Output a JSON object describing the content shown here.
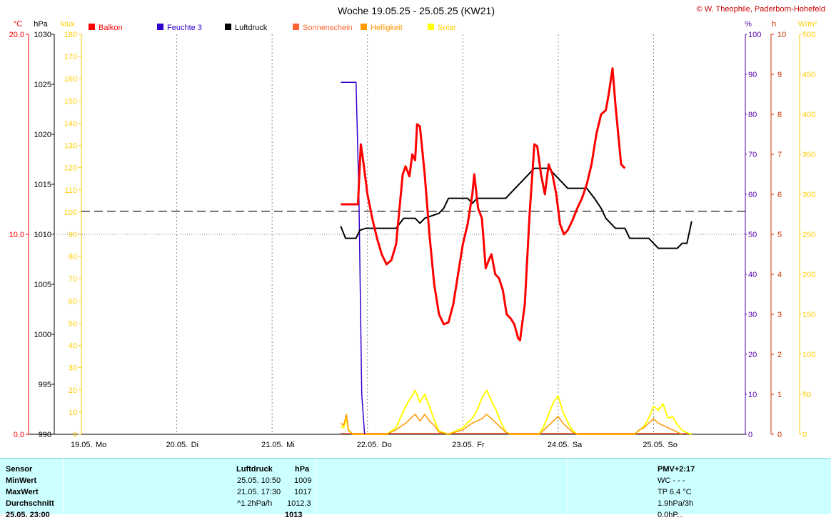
{
  "title": "Woche 19.05.25 - 25.05.25 (KW21)",
  "copyright": "© W. Theophile, Paderborn-Hohefeld",
  "colors": {
    "balkon": "#ff0000",
    "feuchte": "#3300cc",
    "luftdruck": "#000000",
    "sonnenschein": "#ff6633",
    "helligkeit": "#ff9900",
    "solar": "#ffff00",
    "celsius_axis": "#ff0000",
    "klux_axis": "#ffcc00",
    "percent_axis": "#5500aa",
    "hours_axis": "#cc3300",
    "solar_axis": "#ffcc00",
    "info_bg": "#ccffff"
  },
  "chart_data": {
    "type": "line",
    "title": "Woche 19.05.25 - 25.05.25 (KW21)",
    "legend": [
      "Balkon",
      "Feuchte 3",
      "Luftdruck",
      "Sonnenschein",
      "Helligkeit",
      "Solar"
    ],
    "x_days": [
      {
        "date": "19.05.",
        "day": "Mo"
      },
      {
        "date": "20.05.",
        "day": "Di"
      },
      {
        "date": "21.05.",
        "day": "Mi"
      },
      {
        "date": "22.05.",
        "day": "Do"
      },
      {
        "date": "23.05.",
        "day": "Fr"
      },
      {
        "date": "24.05.",
        "day": "Sa"
      },
      {
        "date": "25.05.",
        "day": "So"
      }
    ],
    "axes": {
      "celsius": {
        "unit": "°C",
        "range": [
          0,
          20
        ],
        "ticks": [
          "20.0",
          "10.0",
          "0.0"
        ]
      },
      "hpa": {
        "unit": "hPa",
        "range": [
          990,
          1030
        ],
        "ticks": [
          "1030",
          "1025",
          "1020",
          "1015",
          "1010",
          "1005",
          "1000",
          "995",
          "990"
        ]
      },
      "klux": {
        "unit": "klux",
        "range": [
          0,
          180
        ],
        "ticks": [
          "180",
          "170",
          "160",
          "150",
          "140",
          "130",
          "120",
          "110",
          "100",
          "90",
          "80",
          "70",
          "60",
          "50",
          "40",
          "30",
          "20",
          "10",
          "0"
        ]
      },
      "percent": {
        "unit": "%",
        "range": [
          0,
          100
        ],
        "ticks": [
          "100",
          "90",
          "80",
          "70",
          "60",
          "50",
          "40",
          "30",
          "20",
          "10",
          "0"
        ]
      },
      "hours": {
        "unit": "h",
        "range": [
          0,
          10
        ],
        "ticks": [
          "10",
          "9",
          "8",
          "7",
          "6",
          "5",
          "4",
          "3",
          "2",
          "1",
          "0"
        ]
      },
      "solar": {
        "unit": "W/m²",
        "range": [
          0,
          500
        ],
        "ticks": [
          "500",
          "450",
          "400",
          "350",
          "300",
          "250",
          "200",
          "150",
          "100",
          "50",
          "0"
        ]
      }
    },
    "pressure_mean_hpa": 1012.3,
    "series": [
      {
        "name": "Balkon",
        "unit": "°C",
        "points": [
          [
            2.72,
            11.5
          ],
          [
            2.9,
            11.5
          ],
          [
            2.93,
            14.5
          ],
          [
            2.96,
            13.5
          ],
          [
            3.0,
            12.0
          ],
          [
            3.05,
            10.8
          ],
          [
            3.1,
            9.8
          ],
          [
            3.15,
            9.0
          ],
          [
            3.2,
            8.5
          ],
          [
            3.25,
            8.7
          ],
          [
            3.3,
            9.5
          ],
          [
            3.33,
            11.0
          ],
          [
            3.37,
            13.0
          ],
          [
            3.4,
            13.4
          ],
          [
            3.44,
            12.9
          ],
          [
            3.47,
            14.0
          ],
          [
            3.5,
            13.7
          ],
          [
            3.52,
            15.5
          ],
          [
            3.55,
            15.4
          ],
          [
            3.6,
            13.0
          ],
          [
            3.65,
            10.0
          ],
          [
            3.7,
            7.5
          ],
          [
            3.75,
            6.0
          ],
          [
            3.8,
            5.5
          ],
          [
            3.85,
            5.6
          ],
          [
            3.9,
            6.5
          ],
          [
            3.95,
            8.0
          ],
          [
            4.0,
            9.5
          ],
          [
            4.05,
            10.5
          ],
          [
            4.1,
            12.0
          ],
          [
            4.12,
            13.0
          ],
          [
            4.16,
            11.3
          ],
          [
            4.2,
            10.8
          ],
          [
            4.24,
            8.3
          ],
          [
            4.28,
            8.8
          ],
          [
            4.3,
            9.0
          ],
          [
            4.34,
            8.0
          ],
          [
            4.38,
            7.8
          ],
          [
            4.42,
            7.2
          ],
          [
            4.46,
            6.0
          ],
          [
            4.5,
            5.8
          ],
          [
            4.54,
            5.5
          ],
          [
            4.58,
            4.8
          ],
          [
            4.6,
            4.7
          ],
          [
            4.65,
            6.5
          ],
          [
            4.7,
            11.0
          ],
          [
            4.75,
            14.5
          ],
          [
            4.78,
            14.4
          ],
          [
            4.82,
            13.0
          ],
          [
            4.86,
            12.0
          ],
          [
            4.9,
            13.5
          ],
          [
            4.94,
            13.0
          ],
          [
            4.98,
            12.0
          ],
          [
            5.02,
            10.5
          ],
          [
            5.06,
            10.0
          ],
          [
            5.1,
            10.2
          ],
          [
            5.15,
            10.7
          ],
          [
            5.2,
            11.3
          ],
          [
            5.25,
            11.8
          ],
          [
            5.3,
            12.5
          ],
          [
            5.35,
            13.5
          ],
          [
            5.4,
            15.0
          ],
          [
            5.45,
            16.0
          ],
          [
            5.5,
            16.2
          ],
          [
            5.53,
            17.0
          ],
          [
            5.57,
            18.3
          ],
          [
            5.6,
            16.5
          ],
          [
            5.63,
            15.0
          ],
          [
            5.66,
            13.5
          ],
          [
            5.7,
            13.3
          ]
        ]
      },
      {
        "name": "Feuchte 3",
        "unit": "%",
        "points": [
          [
            2.72,
            88
          ],
          [
            2.88,
            88
          ],
          [
            2.91,
            60
          ],
          [
            2.94,
            10
          ],
          [
            2.97,
            0
          ]
        ]
      },
      {
        "name": "Luftdruck",
        "unit": "hPa",
        "points": [
          [
            2.72,
            1010.8
          ],
          [
            2.77,
            1009.6
          ],
          [
            2.88,
            1009.6
          ],
          [
            2.92,
            1010.4
          ],
          [
            2.98,
            1010.6
          ],
          [
            3.3,
            1010.6
          ],
          [
            3.38,
            1011.6
          ],
          [
            3.5,
            1011.6
          ],
          [
            3.55,
            1011.1
          ],
          [
            3.6,
            1011.6
          ],
          [
            3.75,
            1012.1
          ],
          [
            3.8,
            1012.6
          ],
          [
            3.85,
            1013.6
          ],
          [
            4.05,
            1013.6
          ],
          [
            4.1,
            1013.1
          ],
          [
            4.15,
            1013.6
          ],
          [
            4.45,
            1013.6
          ],
          [
            4.55,
            1014.6
          ],
          [
            4.65,
            1015.6
          ],
          [
            4.75,
            1016.6
          ],
          [
            4.9,
            1016.6
          ],
          [
            5.0,
            1015.6
          ],
          [
            5.1,
            1014.6
          ],
          [
            5.3,
            1014.6
          ],
          [
            5.38,
            1013.6
          ],
          [
            5.45,
            1012.6
          ],
          [
            5.5,
            1011.6
          ],
          [
            5.55,
            1011.1
          ],
          [
            5.6,
            1010.6
          ],
          [
            5.7,
            1010.6
          ],
          [
            5.75,
            1009.6
          ],
          [
            5.95,
            1009.6
          ],
          [
            6.05,
            1008.6
          ],
          [
            6.25,
            1008.6
          ],
          [
            6.3,
            1009.1
          ],
          [
            6.35,
            1009.1
          ],
          [
            6.4,
            1011.3
          ]
        ]
      },
      {
        "name": "Sonnenschein",
        "unit": "h",
        "points": [
          [
            2.72,
            0.02
          ],
          [
            6.4,
            0.02
          ]
        ]
      },
      {
        "name": "Helligkeit",
        "unit": "klux",
        "points": [
          [
            2.72,
            5
          ],
          [
            2.75,
            4
          ],
          [
            2.78,
            9
          ],
          [
            2.8,
            2
          ],
          [
            2.85,
            0
          ],
          [
            3.2,
            0
          ],
          [
            3.3,
            2
          ],
          [
            3.4,
            5
          ],
          [
            3.45,
            7
          ],
          [
            3.5,
            9
          ],
          [
            3.55,
            6
          ],
          [
            3.6,
            9
          ],
          [
            3.65,
            6
          ],
          [
            3.7,
            4
          ],
          [
            3.75,
            1
          ],
          [
            3.85,
            0
          ],
          [
            4.0,
            2
          ],
          [
            4.1,
            5
          ],
          [
            4.15,
            6
          ],
          [
            4.2,
            7
          ],
          [
            4.25,
            9
          ],
          [
            4.3,
            7
          ],
          [
            4.35,
            5
          ],
          [
            4.4,
            3
          ],
          [
            4.45,
            1
          ],
          [
            4.5,
            0
          ],
          [
            4.8,
            0
          ],
          [
            4.85,
            2
          ],
          [
            4.9,
            4
          ],
          [
            4.95,
            6
          ],
          [
            5.0,
            8
          ],
          [
            5.05,
            5
          ],
          [
            5.1,
            3
          ],
          [
            5.15,
            1
          ],
          [
            5.2,
            0
          ],
          [
            5.8,
            0
          ],
          [
            5.85,
            2
          ],
          [
            5.9,
            3
          ],
          [
            5.95,
            5
          ],
          [
            6.0,
            7
          ],
          [
            6.05,
            5
          ],
          [
            6.1,
            4
          ],
          [
            6.15,
            3
          ],
          [
            6.2,
            2
          ],
          [
            6.25,
            1
          ],
          [
            6.3,
            0
          ]
        ]
      },
      {
        "name": "Solar",
        "unit": "W/m²",
        "points": [
          [
            2.72,
            10
          ],
          [
            2.75,
            8
          ],
          [
            2.78,
            20
          ],
          [
            2.8,
            5
          ],
          [
            2.85,
            0
          ],
          [
            3.2,
            0
          ],
          [
            3.3,
            8
          ],
          [
            3.4,
            35
          ],
          [
            3.45,
            45
          ],
          [
            3.5,
            55
          ],
          [
            3.55,
            40
          ],
          [
            3.6,
            50
          ],
          [
            3.65,
            35
          ],
          [
            3.7,
            18
          ],
          [
            3.75,
            4
          ],
          [
            3.85,
            0
          ],
          [
            4.0,
            8
          ],
          [
            4.1,
            20
          ],
          [
            4.15,
            30
          ],
          [
            4.2,
            45
          ],
          [
            4.25,
            55
          ],
          [
            4.3,
            42
          ],
          [
            4.35,
            30
          ],
          [
            4.4,
            15
          ],
          [
            4.45,
            3
          ],
          [
            4.5,
            0
          ],
          [
            4.8,
            0
          ],
          [
            4.85,
            10
          ],
          [
            4.9,
            25
          ],
          [
            4.95,
            40
          ],
          [
            5.0,
            48
          ],
          [
            5.05,
            28
          ],
          [
            5.1,
            15
          ],
          [
            5.15,
            5
          ],
          [
            5.2,
            0
          ],
          [
            5.8,
            0
          ],
          [
            5.85,
            5
          ],
          [
            5.9,
            10
          ],
          [
            5.95,
            20
          ],
          [
            6.0,
            35
          ],
          [
            6.05,
            30
          ],
          [
            6.1,
            38
          ],
          [
            6.15,
            20
          ],
          [
            6.2,
            22
          ],
          [
            6.25,
            12
          ],
          [
            6.3,
            5
          ],
          [
            6.35,
            2
          ],
          [
            6.4,
            0
          ]
        ]
      }
    ]
  },
  "info": {
    "sensor_label": "Sensor",
    "min_label": "MinWert",
    "max_label": "MaxWert",
    "avg_label": "Durchschnitt",
    "partial_label": "25.05. 23:00",
    "col_luftdruck": "Luftdruck",
    "col_unit": "hPa",
    "min_time": "25.05.  10:50",
    "min_value": "1009",
    "max_time": "21.05.  17:30",
    "max_value": "1017",
    "trend": "^1.2hPa/h",
    "avg_value": "1012.3",
    "last_value": "1013",
    "pmv": "PMV+2:17",
    "wc": "WC - - -",
    "tp": "TP 6.4 °C",
    "pressure_trend": "1.9hPa/3h",
    "partial_right": "0.0hP..."
  }
}
